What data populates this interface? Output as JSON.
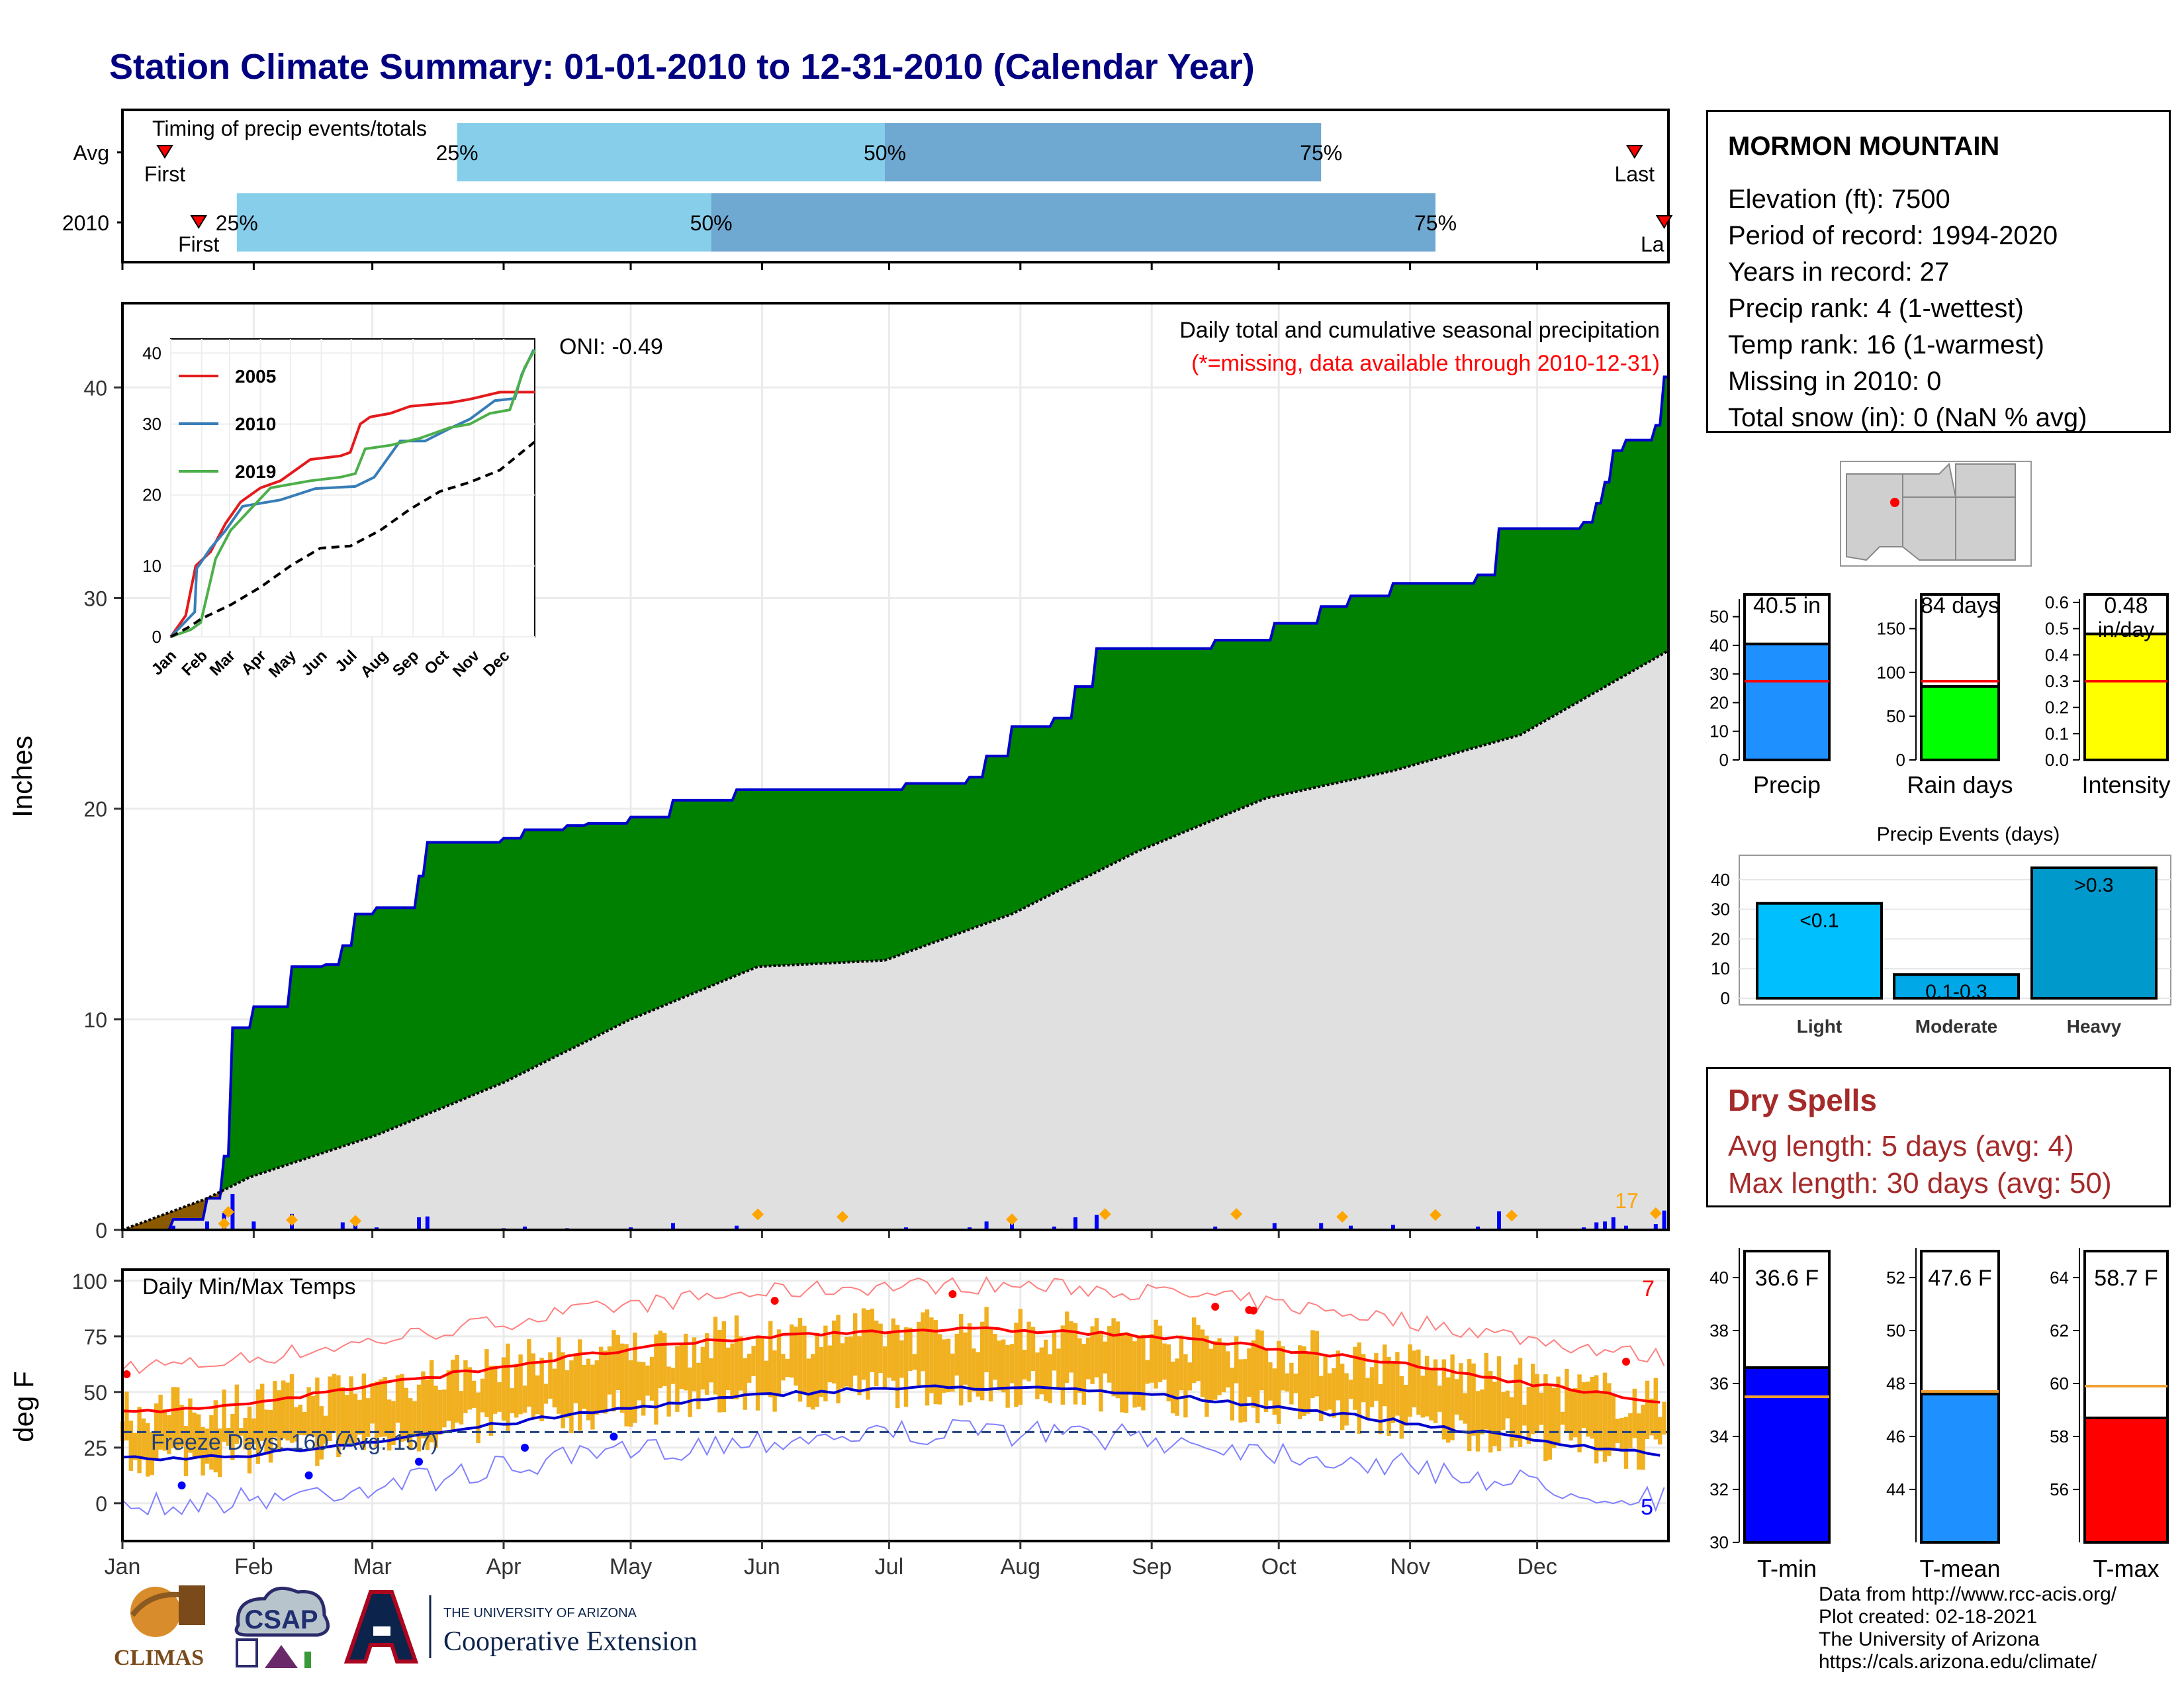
{
  "title": "Station Climate Summary: 01-01-2010 to 12-31-2010 (Calendar Year)",
  "timing_panel": {
    "label": "Timing of precip events/totals",
    "rows": [
      {
        "name": "Avg",
        "first_label": "First",
        "last_label": "Last",
        "p25_label": "25%",
        "p50_label": "50%",
        "p75_label": "75%",
        "first_day": 10,
        "p25_day": 79,
        "p50_day": 180,
        "p75_day": 283,
        "last_day": 357
      },
      {
        "name": "2010",
        "first_label": "First",
        "last_label": "La",
        "p25_label": "25%",
        "p50_label": "50%",
        "p75_label": "75%",
        "first_day": 18,
        "p25_day": 27,
        "p50_day": 139,
        "p75_day": 310,
        "last_day": 364
      }
    ]
  },
  "precip_panel": {
    "ylabel": "Inches",
    "header": "Daily total and cumulative seasonal precipitation",
    "subheader": "(*=missing, data available through 2010-12-31)",
    "oni": "ONI: -0.49",
    "marker_count": "17",
    "yticks": [
      "0",
      "10",
      "20",
      "30",
      "40"
    ],
    "ylim": [
      0,
      44
    ]
  },
  "months": [
    "Jan",
    "Feb",
    "Mar",
    "Apr",
    "May",
    "Jun",
    "Jul",
    "Aug",
    "Sep",
    "Oct",
    "Nov",
    "Dec"
  ],
  "inset": {
    "yticks": [
      "0",
      "10",
      "20",
      "30",
      "40"
    ],
    "months": [
      "Jan",
      "Feb",
      "Mar",
      "Apr",
      "May",
      "Jun",
      "Jul",
      "Aug",
      "Sep",
      "Oct",
      "Nov",
      "Dec"
    ],
    "legend": [
      {
        "name": "2005",
        "color": "#e41a1c"
      },
      {
        "name": "2010",
        "color": "#377eb8"
      },
      {
        "name": "2019",
        "color": "#4daf4a"
      }
    ]
  },
  "temp_panel": {
    "ylabel": "deg F",
    "header": "Daily Min/Max Temps",
    "freeze": "Freeze Days: 160 (Avg: 157)",
    "hot_count": "7",
    "cold_count": "5",
    "yticks": [
      "0",
      "25",
      "50",
      "75",
      "100"
    ],
    "freeze_line": 32
  },
  "station": {
    "name": "MORMON MOUNTAIN",
    "lines": [
      "Elevation (ft): 7500",
      "Period of record: 1994-2020",
      "Years in record: 27",
      "Precip rank: 4 (1-wettest)",
      "Temp rank: 16 (1-warmest)",
      "Missing in 2010: 0",
      "Total snow (in): 0 (NaN % avg)"
    ]
  },
  "summary_bars": [
    {
      "name": "Precip",
      "label": "40.5 in",
      "value": 40.5,
      "avg": 27.5,
      "ymax": 55,
      "yticks": [
        "0",
        "10",
        "20",
        "30",
        "40",
        "50"
      ],
      "color": "#1e90ff"
    },
    {
      "name": "Rain days",
      "label": "84 days",
      "value": 84,
      "avg": 90,
      "ymax": 180,
      "yticks": [
        "0",
        "50",
        "100",
        "150"
      ],
      "color": "#00ff00"
    },
    {
      "name": "Intensity",
      "label": "0.48",
      "sublabel": "in/day",
      "value": 0.48,
      "avg": 0.3,
      "ymax": 0.6,
      "yticks": [
        "0.0",
        "0.1",
        "0.2",
        "0.3",
        "0.4",
        "0.5",
        "0.6"
      ],
      "color": "#ffff00"
    }
  ],
  "precip_events": {
    "title": "Precip Events (days)",
    "yticks": [
      "0",
      "10",
      "20",
      "30",
      "40"
    ],
    "ymax": 46,
    "bars": [
      {
        "category": "Light",
        "label": "<0.1",
        "value": 32,
        "color": "#00bfff"
      },
      {
        "category": "Moderate",
        "label": "0.1-0.3",
        "value": 8,
        "color": "#00a8e8"
      },
      {
        "category": "Heavy",
        "label": ">0.3",
        "value": 44,
        "color": "#0099cc"
      }
    ]
  },
  "dry_spells": {
    "title": "Dry Spells",
    "avg": "Avg length: 5 days (avg: 4)",
    "max": "Max length: 30 days (avg: 50)"
  },
  "temp_bars": [
    {
      "name": "T-min",
      "label": "36.6 F",
      "value": 36.6,
      "avg": 35.5,
      "ymin": 30,
      "ymax": 41,
      "yticks": [
        "30",
        "32",
        "34",
        "36",
        "38",
        "40"
      ],
      "color": "#0000ff"
    },
    {
      "name": "T-mean",
      "label": "47.6 F",
      "value": 47.6,
      "avg": 47.7,
      "ymin": 42,
      "ymax": 53,
      "yticks": [
        "44",
        "46",
        "48",
        "50",
        "52"
      ],
      "color": "#1e90ff"
    },
    {
      "name": "T-max",
      "label": "58.7 F",
      "value": 58.7,
      "avg": 59.9,
      "ymin": 54,
      "ymax": 65,
      "yticks": [
        "56",
        "58",
        "60",
        "62",
        "64"
      ],
      "color": "#ff0000"
    }
  ],
  "credits": [
    "Data from http://www.rcc-acis.org/",
    "Plot created: 02-18-2021",
    "The University of Arizona",
    "https://cals.arizona.edu/climate/"
  ],
  "logos": {
    "climas": "CLIMAS",
    "csap": "CSAP",
    "ua_small": "THE UNIVERSITY OF ARIZONA",
    "ua_big": "Cooperative Extension"
  },
  "colors": {
    "cumulative_fill": "#008000",
    "cumulative_line": "#0000cd",
    "average_fill": "#e0e0e0",
    "daily_bar": "#0000ff",
    "event_marker": "#ffa500",
    "temp_bar": "#f0b020",
    "tmax_line": "#ff0000",
    "tmin_line": "#0000cd"
  }
}
